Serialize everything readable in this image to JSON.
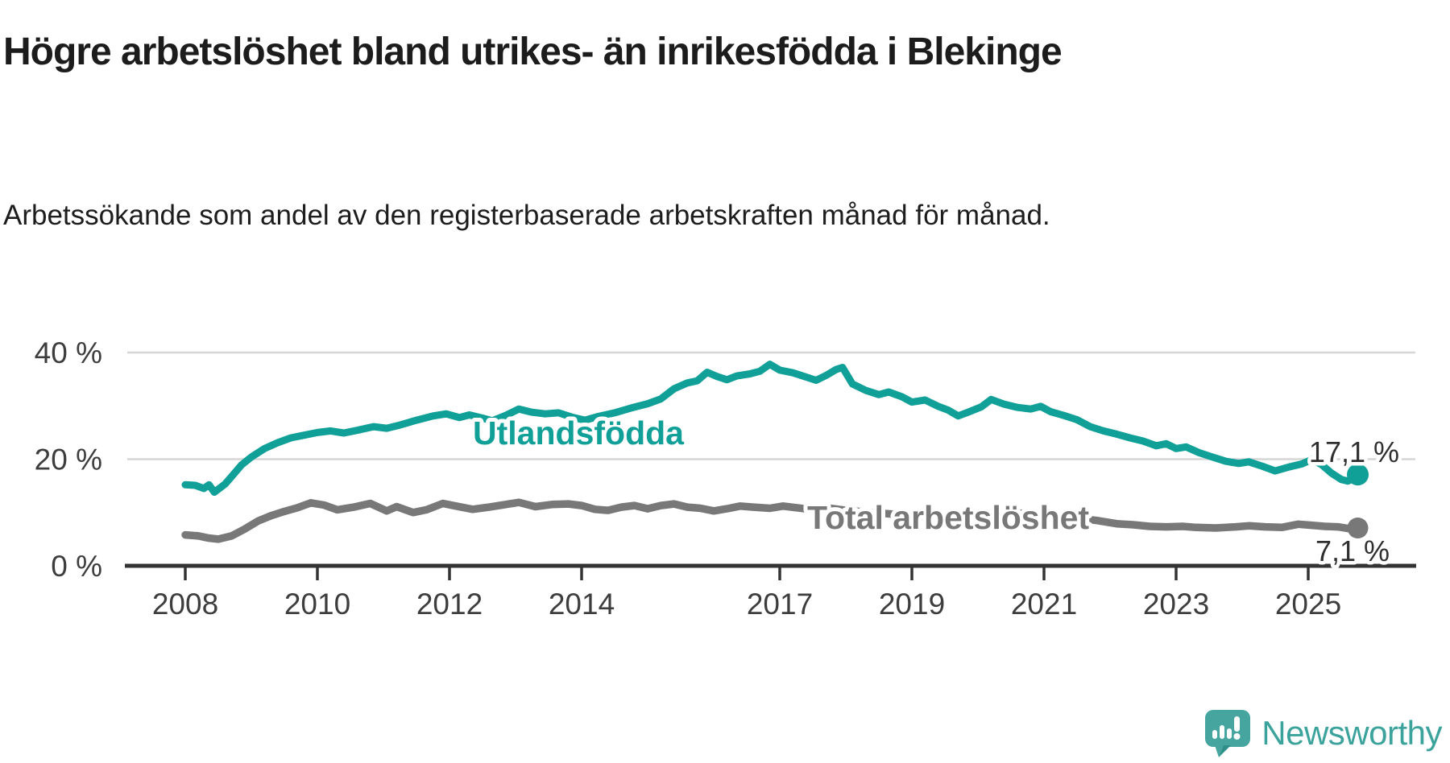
{
  "title": "Högre arbetslöshet bland utrikes- än inrikesfödda i Blekinge",
  "subtitle": "Arbetssökande som andel av den registerbaserade arbetskraften månad för månad.",
  "logo": {
    "text": "Newsworthy",
    "icon": "newsworthy-speech-bubble-chart-icon",
    "accent_color": "#3ba39c"
  },
  "colors": {
    "teal_series": "#10a098",
    "gray_series": "#787878",
    "axis": "#333333",
    "gridline": "#d6d6d6",
    "text_dark": "#1c1c1c"
  },
  "chart_data": {
    "type": "line",
    "title": "Högre arbetslöshet bland utrikes- än inrikesfödda i Blekinge",
    "subtitle": "Arbetssökande som andel av den registerbaserade arbetskraften månad för månad.",
    "xlabel": "",
    "ylabel": "",
    "x_unit": "year (monthly data)",
    "y_unit": "percent",
    "ylim": [
      0,
      42
    ],
    "x_ticks": [
      2008,
      2010,
      2012,
      2014,
      2017,
      2019,
      2021,
      2023,
      2025
    ],
    "y_ticks": [
      {
        "value": 0,
        "label": "0 %"
      },
      {
        "value": 20,
        "label": "20 %"
      },
      {
        "value": 40,
        "label": "40 %"
      }
    ],
    "grid": "horizontal",
    "legend_position": "inline-labels",
    "series": [
      {
        "name": "Utlandsfödda",
        "color": "#10a098",
        "end_value": 17.1,
        "end_label": "17,1 %",
        "points": [
          [
            2008.0,
            15.2
          ],
          [
            2008.15,
            15.1
          ],
          [
            2008.28,
            14.5
          ],
          [
            2008.36,
            15.2
          ],
          [
            2008.44,
            13.8
          ],
          [
            2008.6,
            15.3
          ],
          [
            2008.72,
            17.0
          ],
          [
            2008.85,
            18.9
          ],
          [
            2009.0,
            20.4
          ],
          [
            2009.2,
            22.0
          ],
          [
            2009.4,
            23.1
          ],
          [
            2009.6,
            24.0
          ],
          [
            2009.8,
            24.5
          ],
          [
            2010.0,
            25.0
          ],
          [
            2010.2,
            25.3
          ],
          [
            2010.4,
            24.9
          ],
          [
            2010.6,
            25.4
          ],
          [
            2010.85,
            26.1
          ],
          [
            2011.05,
            25.8
          ],
          [
            2011.25,
            26.4
          ],
          [
            2011.5,
            27.3
          ],
          [
            2011.75,
            28.1
          ],
          [
            2011.95,
            28.5
          ],
          [
            2012.15,
            27.8
          ],
          [
            2012.3,
            28.3
          ],
          [
            2012.5,
            27.7
          ],
          [
            2012.65,
            27.2
          ],
          [
            2012.85,
            28.2
          ],
          [
            2013.05,
            29.4
          ],
          [
            2013.25,
            28.8
          ],
          [
            2013.45,
            28.5
          ],
          [
            2013.65,
            28.7
          ],
          [
            2013.85,
            27.9
          ],
          [
            2014.05,
            27.3
          ],
          [
            2014.25,
            28.0
          ],
          [
            2014.5,
            28.7
          ],
          [
            2014.75,
            29.6
          ],
          [
            2015.0,
            30.4
          ],
          [
            2015.2,
            31.3
          ],
          [
            2015.4,
            33.2
          ],
          [
            2015.6,
            34.3
          ],
          [
            2015.75,
            34.7
          ],
          [
            2015.9,
            36.3
          ],
          [
            2016.05,
            35.5
          ],
          [
            2016.2,
            34.9
          ],
          [
            2016.35,
            35.6
          ],
          [
            2016.55,
            36.0
          ],
          [
            2016.7,
            36.5
          ],
          [
            2016.85,
            37.8
          ],
          [
            2017.0,
            36.7
          ],
          [
            2017.2,
            36.2
          ],
          [
            2017.4,
            35.4
          ],
          [
            2017.55,
            34.8
          ],
          [
            2017.7,
            35.7
          ],
          [
            2017.85,
            36.8
          ],
          [
            2017.95,
            37.2
          ],
          [
            2018.1,
            34.1
          ],
          [
            2018.3,
            32.9
          ],
          [
            2018.5,
            32.1
          ],
          [
            2018.65,
            32.6
          ],
          [
            2018.85,
            31.7
          ],
          [
            2019.0,
            30.7
          ],
          [
            2019.2,
            31.1
          ],
          [
            2019.4,
            29.9
          ],
          [
            2019.55,
            29.2
          ],
          [
            2019.7,
            28.1
          ],
          [
            2019.85,
            28.8
          ],
          [
            2020.05,
            29.8
          ],
          [
            2020.2,
            31.2
          ],
          [
            2020.4,
            30.3
          ],
          [
            2020.6,
            29.7
          ],
          [
            2020.8,
            29.4
          ],
          [
            2020.95,
            29.9
          ],
          [
            2021.1,
            28.9
          ],
          [
            2021.3,
            28.2
          ],
          [
            2021.5,
            27.4
          ],
          [
            2021.7,
            26.1
          ],
          [
            2021.9,
            25.3
          ],
          [
            2022.1,
            24.7
          ],
          [
            2022.3,
            24.0
          ],
          [
            2022.5,
            23.4
          ],
          [
            2022.7,
            22.5
          ],
          [
            2022.85,
            22.9
          ],
          [
            2023.0,
            22.0
          ],
          [
            2023.15,
            22.3
          ],
          [
            2023.35,
            21.2
          ],
          [
            2023.55,
            20.4
          ],
          [
            2023.75,
            19.6
          ],
          [
            2023.95,
            19.2
          ],
          [
            2024.1,
            19.5
          ],
          [
            2024.3,
            18.7
          ],
          [
            2024.5,
            17.8
          ],
          [
            2024.7,
            18.5
          ],
          [
            2024.9,
            19.1
          ],
          [
            2025.05,
            19.9
          ],
          [
            2025.2,
            19.0
          ],
          [
            2025.35,
            17.4
          ],
          [
            2025.5,
            16.2
          ],
          [
            2025.6,
            15.9
          ],
          [
            2025.7,
            16.5
          ],
          [
            2025.75,
            17.1
          ]
        ]
      },
      {
        "name": "Total arbetslöshet",
        "color": "#787878",
        "end_value": 7.1,
        "end_label": "7,1 %",
        "points": [
          [
            2008.0,
            5.8
          ],
          [
            2008.2,
            5.6
          ],
          [
            2008.35,
            5.2
          ],
          [
            2008.5,
            5.0
          ],
          [
            2008.7,
            5.6
          ],
          [
            2008.9,
            6.9
          ],
          [
            2009.1,
            8.4
          ],
          [
            2009.3,
            9.4
          ],
          [
            2009.5,
            10.2
          ],
          [
            2009.7,
            10.9
          ],
          [
            2009.9,
            11.8
          ],
          [
            2010.1,
            11.4
          ],
          [
            2010.3,
            10.5
          ],
          [
            2010.55,
            11.0
          ],
          [
            2010.8,
            11.7
          ],
          [
            2011.05,
            10.3
          ],
          [
            2011.2,
            11.1
          ],
          [
            2011.45,
            10.0
          ],
          [
            2011.65,
            10.5
          ],
          [
            2011.9,
            11.7
          ],
          [
            2012.1,
            11.2
          ],
          [
            2012.35,
            10.6
          ],
          [
            2012.6,
            11.0
          ],
          [
            2012.85,
            11.5
          ],
          [
            2013.05,
            11.9
          ],
          [
            2013.3,
            11.1
          ],
          [
            2013.55,
            11.5
          ],
          [
            2013.8,
            11.6
          ],
          [
            2014.0,
            11.3
          ],
          [
            2014.2,
            10.6
          ],
          [
            2014.4,
            10.4
          ],
          [
            2014.6,
            11.0
          ],
          [
            2014.8,
            11.3
          ],
          [
            2015.0,
            10.7
          ],
          [
            2015.2,
            11.3
          ],
          [
            2015.4,
            11.6
          ],
          [
            2015.6,
            11.0
          ],
          [
            2015.8,
            10.8
          ],
          [
            2016.0,
            10.3
          ],
          [
            2016.2,
            10.7
          ],
          [
            2016.4,
            11.2
          ],
          [
            2016.6,
            11.0
          ],
          [
            2016.85,
            10.8
          ],
          [
            2017.05,
            11.2
          ],
          [
            2017.25,
            10.9
          ],
          [
            2017.45,
            10.6
          ],
          [
            2017.7,
            10.9
          ],
          [
            2018.0,
            10.4
          ],
          [
            2018.4,
            10.0
          ],
          [
            2018.8,
            9.6
          ],
          [
            2019.2,
            9.3
          ],
          [
            2019.6,
            9.0
          ],
          [
            2020.0,
            9.3
          ],
          [
            2020.3,
            10.2
          ],
          [
            2020.6,
            9.9
          ],
          [
            2021.0,
            9.6
          ],
          [
            2021.4,
            9.1
          ],
          [
            2021.8,
            8.5
          ],
          [
            2022.1,
            7.9
          ],
          [
            2022.35,
            7.7
          ],
          [
            2022.6,
            7.4
          ],
          [
            2022.85,
            7.3
          ],
          [
            2023.1,
            7.4
          ],
          [
            2023.3,
            7.2
          ],
          [
            2023.6,
            7.1
          ],
          [
            2023.9,
            7.3
          ],
          [
            2024.1,
            7.5
          ],
          [
            2024.35,
            7.3
          ],
          [
            2024.6,
            7.2
          ],
          [
            2024.85,
            7.8
          ],
          [
            2025.05,
            7.6
          ],
          [
            2025.25,
            7.4
          ],
          [
            2025.45,
            7.3
          ],
          [
            2025.6,
            7.0
          ],
          [
            2025.75,
            7.1
          ]
        ]
      }
    ]
  }
}
